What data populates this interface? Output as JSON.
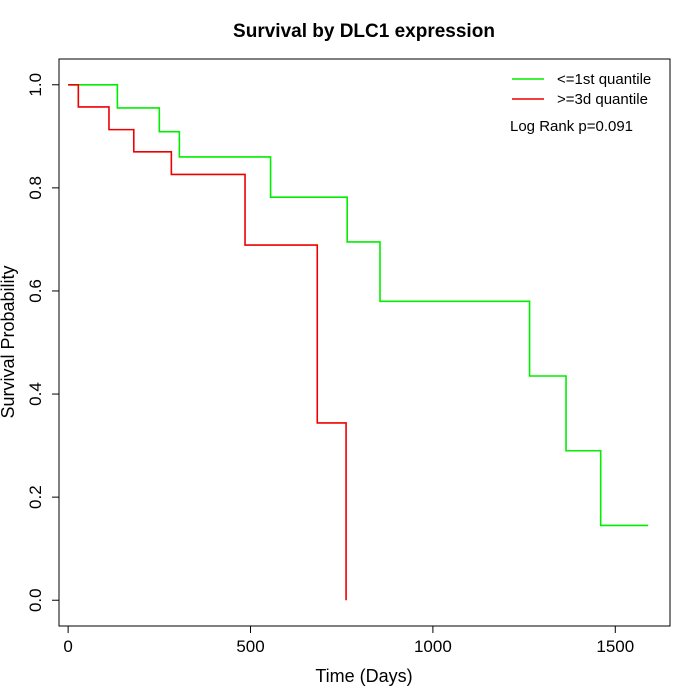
{
  "chart_data": {
    "type": "line",
    "step": true,
    "title": "Survival by DLC1 expression",
    "xlabel": "Time (Days)",
    "ylabel": "Survival Probability",
    "xlim": [
      -25,
      1650
    ],
    "ylim": [
      -0.05,
      1.05
    ],
    "xticks": [
      0,
      500,
      1000,
      1500
    ],
    "yticks": [
      0.0,
      0.2,
      0.4,
      0.6,
      0.8,
      1.0
    ],
    "xtick_labels": [
      "0",
      "500",
      "1000",
      "1500"
    ],
    "ytick_labels": [
      "0.0",
      "0.2",
      "0.4",
      "0.6",
      "0.8",
      "1.0"
    ],
    "legend_position": "top-right",
    "annotation": "Log Rank p=0.091",
    "series": [
      {
        "name": "<=1st quantile",
        "color": "#00ee00",
        "x": [
          0,
          135,
          250,
          305,
          555,
          765,
          855,
          1265,
          1365,
          1460,
          1590
        ],
        "y": [
          1.0,
          0.955,
          0.909,
          0.86,
          0.782,
          0.695,
          0.58,
          0.435,
          0.29,
          0.145,
          0.145
        ]
      },
      {
        "name": ">=3d quantile",
        "color": "#ee0000",
        "x": [
          0,
          28,
          112,
          180,
          283,
          485,
          683,
          762
        ],
        "y": [
          1.0,
          0.957,
          0.913,
          0.87,
          0.826,
          0.689,
          0.344,
          0.0
        ]
      }
    ]
  }
}
